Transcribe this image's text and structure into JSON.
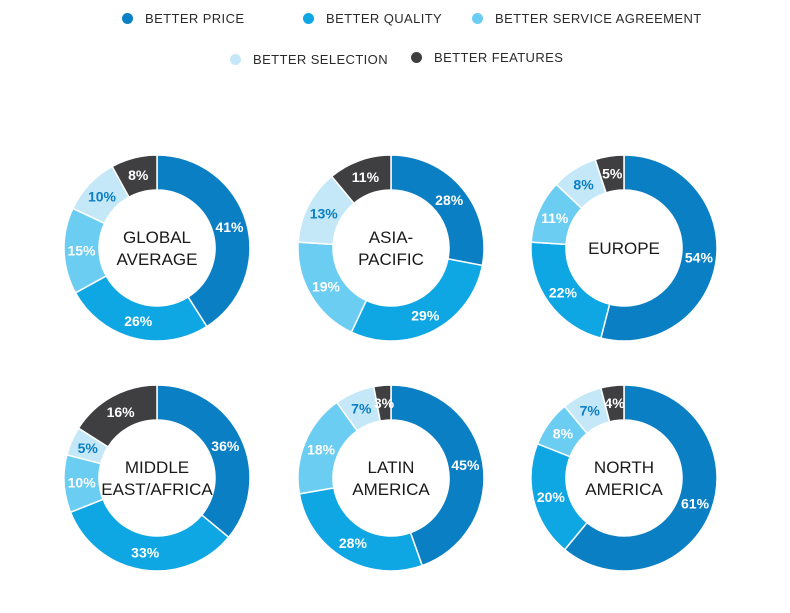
{
  "legend": [
    {
      "label": "BETTER PRICE",
      "color": "#0b7fc4"
    },
    {
      "label": "BETTER QUALITY",
      "color": "#0fa7e3"
    },
    {
      "label": "BETTER SERVICE AGREEMENT",
      "color": "#6bcdf2"
    },
    {
      "label": "BETTER SELECTION",
      "color": "#c4e8f8"
    },
    {
      "label": "BETTER FEATURES",
      "color": "#3f3f41"
    }
  ],
  "chart_data": [
    {
      "type": "pie",
      "title": "GLOBAL AVERAGE",
      "title_lines": [
        "GLOBAL",
        "AVERAGE"
      ],
      "categories": [
        "BETTER PRICE",
        "BETTER QUALITY",
        "BETTER SERVICE AGREEMENT",
        "BETTER SELECTION",
        "BETTER FEATURES"
      ],
      "values": [
        41,
        26,
        15,
        10,
        8
      ],
      "labels": [
        "41%",
        "26%",
        "15%",
        "10%",
        "8%"
      ]
    },
    {
      "type": "pie",
      "title": "ASIA-PACIFIC",
      "title_lines": [
        "ASIA-",
        "PACIFIC"
      ],
      "categories": [
        "BETTER PRICE",
        "BETTER QUALITY",
        "BETTER SERVICE AGREEMENT",
        "BETTER SELECTION",
        "BETTER FEATURES"
      ],
      "values": [
        28,
        29,
        19,
        13,
        11
      ],
      "labels": [
        "28%",
        "29%",
        "19%",
        "13%",
        "11%"
      ]
    },
    {
      "type": "pie",
      "title": "EUROPE",
      "title_lines": [
        "EUROPE"
      ],
      "categories": [
        "BETTER PRICE",
        "BETTER QUALITY",
        "BETTER SERVICE AGREEMENT",
        "BETTER SELECTION",
        "BETTER FEATURES"
      ],
      "values": [
        54,
        22,
        11,
        8,
        5
      ],
      "labels": [
        "54%",
        "22%",
        "11%",
        "8%",
        "5%"
      ]
    },
    {
      "type": "pie",
      "title": "MIDDLE EAST/AFRICA",
      "title_lines": [
        "MIDDLE",
        "EAST/AFRICA"
      ],
      "categories": [
        "BETTER PRICE",
        "BETTER QUALITY",
        "BETTER SERVICE AGREEMENT",
        "BETTER SELECTION",
        "BETTER FEATURES"
      ],
      "values": [
        36,
        33,
        10,
        5,
        16
      ],
      "labels": [
        "36%",
        "33%",
        "10%",
        "5%",
        "16%"
      ]
    },
    {
      "type": "pie",
      "title": "LATIN AMERICA",
      "title_lines": [
        "LATIN",
        "AMERICA"
      ],
      "categories": [
        "BETTER PRICE",
        "BETTER QUALITY",
        "BETTER SERVICE AGREEMENT",
        "BETTER SELECTION",
        "BETTER FEATURES"
      ],
      "values": [
        45,
        28,
        18,
        7,
        3
      ],
      "labels": [
        "45%",
        "28%",
        "18%",
        "7%",
        "3%"
      ]
    },
    {
      "type": "pie",
      "title": "NORTH AMERICA",
      "title_lines": [
        "NORTH",
        "AMERICA"
      ],
      "categories": [
        "BETTER PRICE",
        "BETTER QUALITY",
        "BETTER SERVICE AGREEMENT",
        "BETTER SELECTION",
        "BETTER FEATURES"
      ],
      "values": [
        61,
        20,
        8,
        7,
        4
      ],
      "labels": [
        "61%",
        "20%",
        "8%",
        "7%",
        "4%"
      ]
    }
  ],
  "label_colors": [
    "#ffffff",
    "#ffffff",
    "#ffffff",
    "#0b7fc4",
    "#ffffff"
  ]
}
